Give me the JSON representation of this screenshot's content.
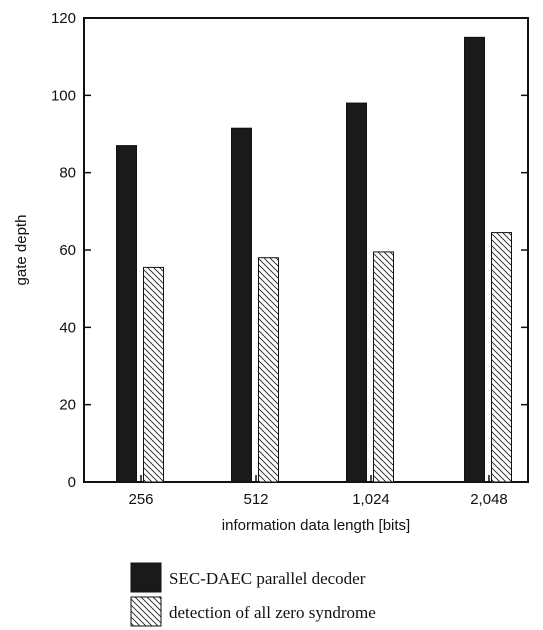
{
  "chart_data": {
    "type": "bar",
    "categories": [
      "256",
      "512",
      "1,024",
      "2,048"
    ],
    "series": [
      {
        "name": "SEC-DAEC parallel decoder",
        "values": [
          87,
          91.5,
          98,
          115
        ],
        "color": "#1a1a1a",
        "fill": "solid"
      },
      {
        "name": "detection of all zero syndrome",
        "values": [
          55.5,
          58,
          59.5,
          64.5
        ],
        "color": "#ffffff",
        "fill": "hatched"
      }
    ],
    "xlabel": "information data length [bits]",
    "ylabel": "gate depth",
    "ylim": [
      0,
      120
    ],
    "yticks": [
      "0",
      "20",
      "40",
      "60",
      "80",
      "100",
      "120"
    ],
    "grid": false,
    "legend_position": "bottom"
  }
}
